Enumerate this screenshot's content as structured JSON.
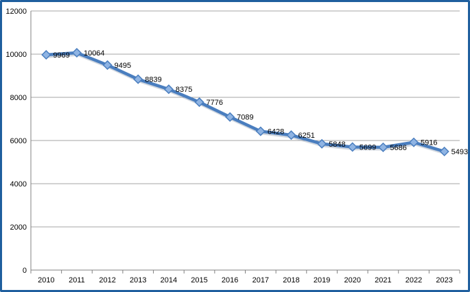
{
  "chart_data": {
    "type": "line",
    "title": "",
    "xlabel": "",
    "ylabel": "",
    "categories": [
      "2010",
      "2011",
      "2012",
      "2013",
      "2014",
      "2015",
      "2016",
      "2017",
      "2018",
      "2019",
      "2020",
      "2021",
      "2022",
      "2023"
    ],
    "series": [
      {
        "values": [
          9969,
          10064,
          9495,
          8839,
          8375,
          7776,
          7089,
          6428,
          6251,
          5848,
          5699,
          5686,
          5916,
          5493
        ],
        "color": "#4a7ebf",
        "marker": "diamond",
        "data_labels": [
          "9969",
          "10064",
          "9495",
          "8839",
          "8375",
          "7776",
          "7089",
          "6428",
          "6251",
          "5848",
          "5699",
          "5686",
          "5916",
          "5493"
        ]
      }
    ],
    "ylim": [
      0,
      12000
    ],
    "yticks": [
      0,
      2000,
      4000,
      6000,
      8000,
      10000,
      12000
    ],
    "ytick_labels": [
      "0",
      "2000",
      "4000",
      "6000",
      "8000",
      "10000",
      "12000"
    ],
    "grid": "horizontal",
    "legend": "none",
    "colors": {
      "border": "#1f5f9e",
      "gridline": "#a6a6a6",
      "axis": "#808080",
      "line": "#4a7ebf",
      "marker_fill": "#8fb4e3",
      "marker_stroke": "#4a7ebf"
    }
  }
}
